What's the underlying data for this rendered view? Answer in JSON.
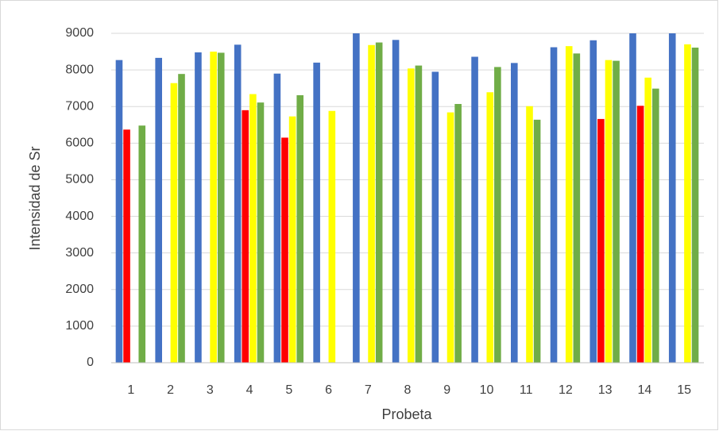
{
  "chart_data": {
    "type": "bar",
    "categories": [
      "1",
      "2",
      "3",
      "4",
      "5",
      "6",
      "7",
      "8",
      "9",
      "10",
      "11",
      "12",
      "13",
      "14",
      "15"
    ],
    "series": [
      {
        "color": "#4472c4",
        "values": [
          8270,
          8330,
          8480,
          8690,
          7900,
          8200,
          9000,
          8820,
          7950,
          8360,
          8190,
          8620,
          8810,
          9000,
          9000
        ]
      },
      {
        "color": "#ff0000",
        "values": [
          6370,
          null,
          null,
          6900,
          6150,
          null,
          null,
          null,
          null,
          null,
          null,
          null,
          6660,
          7020,
          null
        ]
      },
      {
        "color": "#ffff00",
        "values": [
          null,
          7640,
          8500,
          7340,
          6730,
          6880,
          8680,
          8040,
          6840,
          7390,
          7010,
          8650,
          8270,
          7790,
          8700
        ]
      },
      {
        "color": "#70ad47",
        "values": [
          6480,
          7890,
          8470,
          7110,
          7310,
          null,
          8750,
          8120,
          7070,
          8080,
          6640,
          8450,
          8250,
          7490,
          8610
        ]
      }
    ],
    "ylabel": "Intensidad de Sr",
    "xlabel": "Probeta",
    "ylim": [
      0,
      9000
    ],
    "yticks": [
      0,
      1000,
      2000,
      3000,
      4000,
      5000,
      6000,
      7000,
      8000,
      9000
    ],
    "grid": true
  }
}
